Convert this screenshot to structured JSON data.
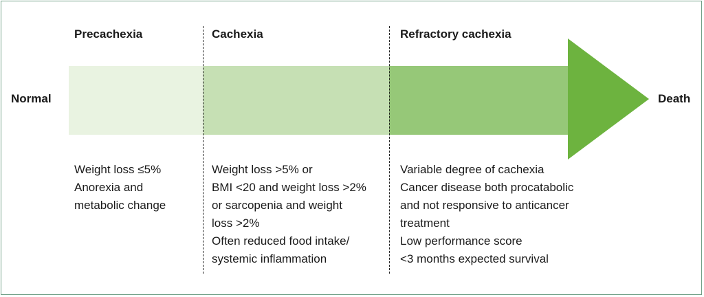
{
  "diagram": {
    "start_label": "Normal",
    "end_label": "Death",
    "stages": [
      {
        "title": "Precachexia",
        "description": [
          "Weight loss ≤5%",
          "Anorexia and",
          "metabolic change"
        ]
      },
      {
        "title": "Cachexia",
        "description": [
          "Weight loss >5% or",
          "BMI <20 and weight loss >2%",
          "or sarcopenia and weight",
          "loss >2%",
          "Often reduced food intake/",
          "systemic inflammation"
        ]
      },
      {
        "title": "Refractory cachexia",
        "description": [
          "Variable degree of cachexia",
          "Cancer disease both procatabolic",
          "and not responsive to anticancer",
          "treatment",
          "Low performance score",
          "<3 months expected survival"
        ]
      }
    ],
    "colors": {
      "stage1": "#e9f3e1",
      "stage2": "#c6e0b4",
      "stage3": "#96c878",
      "arrow_head": "#6db33f",
      "border": "#6f9f86"
    }
  }
}
